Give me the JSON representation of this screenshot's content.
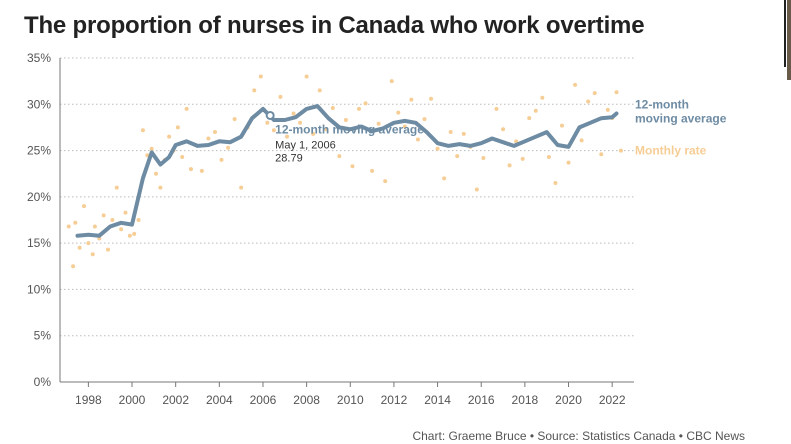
{
  "title": "The proportion of nurses in Canada who work overtime",
  "footer": "Chart: Graeme Bruce • Source: Statistics Canada • CBC News",
  "colors": {
    "moving_average": "#6d8ba3",
    "monthly": "#f6cd95",
    "grid": "#bbbbbb",
    "axis": "#777777",
    "text": "#555555"
  },
  "chart_data": {
    "type": "line",
    "title": "The proportion of nurses in Canada who work overtime",
    "x_ticks": [
      "1998",
      "2000",
      "2002",
      "2004",
      "2006",
      "2008",
      "2010",
      "2012",
      "2014",
      "2016",
      "2018",
      "2020",
      "2022"
    ],
    "y_ticks": [
      "0%",
      "5%",
      "10%",
      "15%",
      "20%",
      "25%",
      "30%",
      "35%"
    ],
    "xlim": [
      1996.7,
      2023.0
    ],
    "ylim": [
      0,
      35
    ],
    "grid": "horizontal dotted",
    "series": [
      {
        "name": "12-month moving average",
        "label_lines": [
          "12-month",
          "moving average"
        ],
        "color": "#6d8ba3",
        "x": [
          1997.5,
          1998.0,
          1998.5,
          1999.0,
          1999.5,
          2000.0,
          2000.5,
          2000.9,
          2001.3,
          2001.7,
          2002.0,
          2002.5,
          2003.0,
          2003.5,
          2004.0,
          2004.5,
          2005.0,
          2005.5,
          2006.0,
          2006.5,
          2007.0,
          2007.5,
          2008.0,
          2008.5,
          2009.0,
          2009.5,
          2010.0,
          2010.5,
          2011.0,
          2011.5,
          2012.0,
          2012.5,
          2013.0,
          2013.5,
          2014.0,
          2014.5,
          2015.0,
          2015.5,
          2016.0,
          2016.5,
          2017.0,
          2017.5,
          2018.0,
          2018.5,
          2019.0,
          2019.5,
          2020.0,
          2020.5,
          2021.0,
          2021.5,
          2022.0,
          2022.2
        ],
        "y": [
          15.8,
          15.9,
          15.8,
          16.8,
          17.2,
          17.0,
          22.0,
          24.8,
          23.5,
          24.3,
          25.6,
          26.0,
          25.5,
          25.6,
          26.0,
          25.9,
          26.5,
          28.5,
          29.5,
          28.3,
          28.3,
          28.6,
          29.5,
          29.8,
          28.5,
          27.5,
          27.3,
          27.6,
          27.1,
          27.4,
          28.0,
          28.2,
          28.0,
          27.0,
          25.8,
          25.5,
          25.7,
          25.5,
          25.8,
          26.3,
          25.9,
          25.5,
          26.0,
          26.5,
          27.0,
          25.6,
          25.4,
          27.5,
          28.0,
          28.5,
          28.6,
          29.0
        ]
      },
      {
        "name": "Monthly rate",
        "label_lines": [
          "Monthly rate"
        ],
        "color": "#f6cd95",
        "x": [
          1997.1,
          1997.3,
          1997.4,
          1997.6,
          1997.8,
          1998.0,
          1998.2,
          1998.3,
          1998.5,
          1998.7,
          1998.9,
          1999.1,
          1999.3,
          1999.5,
          1999.7,
          1999.9,
          2000.1,
          2000.3,
          2000.5,
          2000.7,
          2000.9,
          2001.1,
          2001.3,
          2001.5,
          2001.7,
          2001.9,
          2002.1,
          2002.3,
          2002.5,
          2002.7,
          2002.9,
          2003.2,
          2003.5,
          2003.8,
          2004.1,
          2004.4,
          2004.7,
          2005.0,
          2005.3,
          2005.6,
          2005.9,
          2006.2,
          2006.5,
          2006.8,
          2007.1,
          2007.4,
          2007.7,
          2008.0,
          2008.3,
          2008.6,
          2008.9,
          2009.2,
          2009.5,
          2009.8,
          2010.1,
          2010.4,
          2010.7,
          2011.0,
          2011.3,
          2011.6,
          2011.9,
          2012.2,
          2012.5,
          2012.8,
          2013.1,
          2013.4,
          2013.7,
          2014.0,
          2014.3,
          2014.6,
          2014.9,
          2015.2,
          2015.5,
          2015.8,
          2016.1,
          2016.4,
          2016.7,
          2017.0,
          2017.3,
          2017.6,
          2017.9,
          2018.2,
          2018.5,
          2018.8,
          2019.1,
          2019.4,
          2019.7,
          2020.0,
          2020.3,
          2020.6,
          2020.9,
          2021.2,
          2021.5,
          2021.8,
          2022.0,
          2022.2,
          2022.4
        ],
        "y": [
          16.8,
          12.5,
          17.2,
          14.5,
          19.0,
          15.0,
          13.8,
          16.8,
          15.5,
          18.0,
          14.3,
          17.5,
          21.0,
          16.5,
          18.3,
          15.8,
          16.0,
          17.5,
          27.2,
          24.5,
          25.2,
          22.5,
          21.0,
          24.0,
          26.5,
          25.0,
          27.5,
          24.3,
          29.5,
          23.0,
          25.6,
          22.8,
          26.3,
          27.0,
          24.0,
          25.3,
          28.4,
          21.0,
          27.5,
          31.5,
          33.0,
          28.0,
          27.2,
          30.8,
          26.5,
          29.0,
          28.0,
          33.0,
          26.8,
          31.5,
          27.3,
          29.6,
          24.4,
          28.3,
          23.3,
          29.5,
          30.1,
          22.8,
          27.9,
          21.7,
          32.5,
          29.1,
          27.6,
          30.5,
          26.2,
          28.4,
          30.6,
          25.2,
          22.0,
          27.0,
          24.4,
          26.8,
          25.4,
          20.8,
          24.2,
          26.2,
          29.5,
          27.3,
          23.4,
          26.0,
          24.1,
          28.5,
          29.3,
          30.7,
          24.3,
          21.5,
          27.7,
          23.7,
          32.1,
          26.1,
          30.3,
          31.2,
          24.6,
          29.4,
          28.5,
          31.3,
          25.0
        ]
      }
    ],
    "annotation": {
      "title": "12-month moving average",
      "date": "May 1, 2006",
      "value": "28.79",
      "x": 2006.33,
      "y": 28.79
    }
  }
}
